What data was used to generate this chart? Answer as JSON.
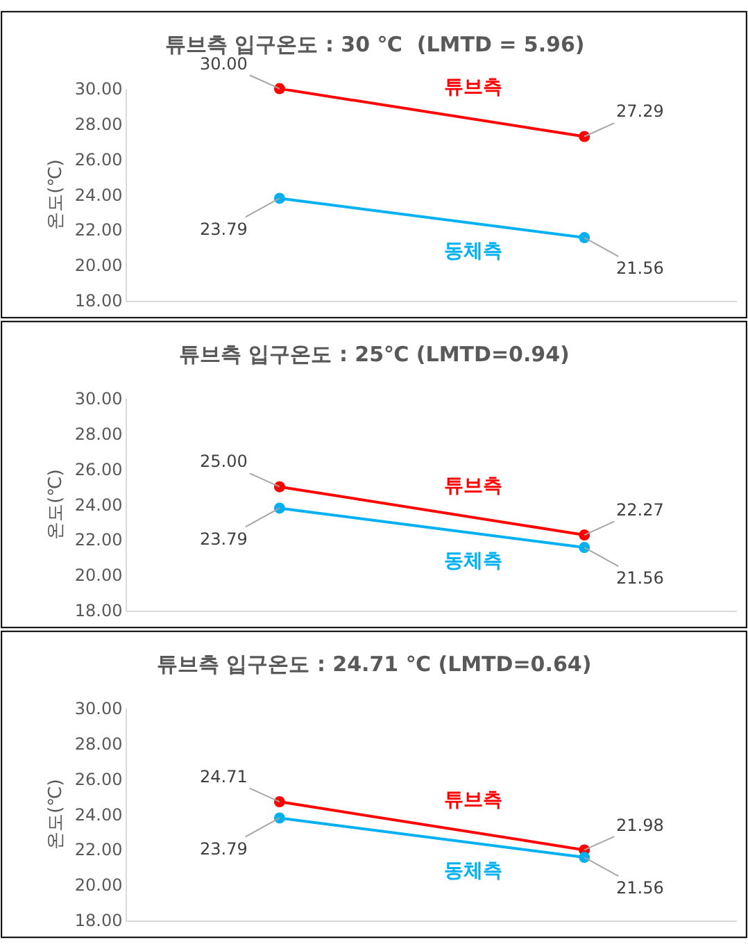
{
  "chart_data": [
    {
      "type": "line",
      "title": "튜브측 입구온도 : 30 ℃  (LMTD = 5.96)",
      "ylabel": "온도(℃)",
      "categories": [
        null,
        null
      ],
      "series": [
        {
          "name": "튜브측",
          "color": "#ff0000",
          "values": [
            30.0,
            27.29
          ],
          "value_labels": [
            "30.00",
            "27.29"
          ]
        },
        {
          "name": "동체측",
          "color": "#00b0f0",
          "values": [
            23.79,
            21.56
          ],
          "value_labels": [
            "23.79",
            "21.56"
          ]
        }
      ],
      "ylim": [
        18,
        30
      ],
      "yticks": [
        {
          "value": 18,
          "label": "18.00"
        },
        {
          "value": 20,
          "label": "20.00"
        },
        {
          "value": 22,
          "label": "22.00"
        },
        {
          "value": 24,
          "label": "24.00"
        },
        {
          "value": 26,
          "label": "26.00"
        },
        {
          "value": 28,
          "label": "28.00"
        },
        {
          "value": 30,
          "label": "30.00"
        }
      ],
      "grid": false,
      "marker": "circle",
      "line_style": "solid"
    },
    {
      "type": "line",
      "title": "튜브측 입구온도 : 25℃ (LMTD=0.94)",
      "ylabel": "온도(℃)",
      "categories": [
        null,
        null
      ],
      "series": [
        {
          "name": "튜브측",
          "color": "#ff0000",
          "values": [
            25.0,
            22.27
          ],
          "value_labels": [
            "25.00",
            "22.27"
          ]
        },
        {
          "name": "동체측",
          "color": "#00b0f0",
          "values": [
            23.79,
            21.56
          ],
          "value_labels": [
            "23.79",
            "21.56"
          ]
        }
      ],
      "ylim": [
        18,
        30
      ],
      "yticks": [
        {
          "value": 18,
          "label": "18.00"
        },
        {
          "value": 20,
          "label": "20.00"
        },
        {
          "value": 22,
          "label": "22.00"
        },
        {
          "value": 24,
          "label": "24.00"
        },
        {
          "value": 26,
          "label": "26.00"
        },
        {
          "value": 28,
          "label": "28.00"
        },
        {
          "value": 30,
          "label": "30.00"
        }
      ],
      "grid": false,
      "marker": "circle",
      "line_style": "solid"
    },
    {
      "type": "line",
      "title": "튜브측 입구온도 : 24.71 ℃ (LMTD=0.64)",
      "ylabel": "온도(℃)",
      "categories": [
        null,
        null
      ],
      "series": [
        {
          "name": "튜브측",
          "color": "#ff0000",
          "values": [
            24.71,
            21.98
          ],
          "value_labels": [
            "24.71",
            "21.98"
          ]
        },
        {
          "name": "동체측",
          "color": "#00b0f0",
          "values": [
            23.79,
            21.56
          ],
          "value_labels": [
            "23.79",
            "21.56"
          ]
        }
      ],
      "ylim": [
        18,
        30
      ],
      "yticks": [
        {
          "value": 18,
          "label": "18.00"
        },
        {
          "value": 20,
          "label": "20.00"
        },
        {
          "value": 22,
          "label": "22.00"
        },
        {
          "value": 24,
          "label": "24.00"
        },
        {
          "value": 26,
          "label": "26.00"
        },
        {
          "value": 28,
          "label": "28.00"
        },
        {
          "value": 30,
          "label": "30.00"
        }
      ],
      "grid": false,
      "marker": "circle",
      "line_style": "solid"
    }
  ]
}
